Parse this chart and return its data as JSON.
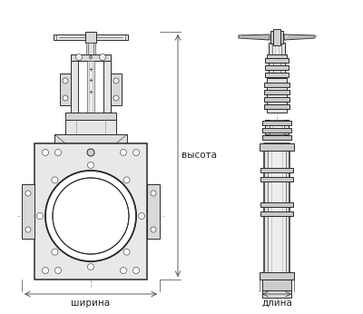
{
  "bg_color": "#ffffff",
  "line_color": "#2a2a2a",
  "dim_color": "#444444",
  "label_color": "#222222",
  "label_ширина": "ширина",
  "label_длина": "длина",
  "label_высота": "высота",
  "figsize": [
    4.0,
    3.46
  ],
  "dpi": 100
}
